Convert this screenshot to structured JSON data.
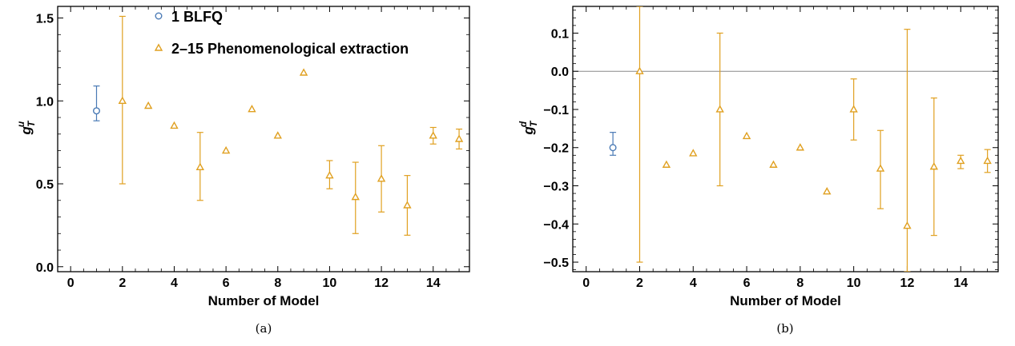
{
  "colors": {
    "blfq": "#4a7ab5",
    "phenomenological": "#e0a020",
    "frame": "#000000",
    "zero_line": "#888888"
  },
  "chart_data": [
    {
      "type": "scatter",
      "panel_caption": "(a)",
      "xlabel": "Number of Model",
      "ylabel_main": "g",
      "ylabel_sub": "T",
      "ylabel_sup": "u",
      "xlim": [
        -0.5,
        15.4
      ],
      "ylim": [
        -0.03,
        1.57
      ],
      "xticks": [
        0,
        2,
        4,
        6,
        8,
        10,
        12,
        14
      ],
      "yticks": [
        0.0,
        0.5,
        1.0,
        1.5
      ],
      "ytick_labels": [
        "0.0",
        "0.5",
        "1.0",
        "1.5"
      ],
      "zero_line": false,
      "legend": {
        "position": "top-left",
        "entries": [
          "1 BLFQ",
          "2–15 Phenomenological extraction"
        ]
      },
      "series": [
        {
          "name": "1 BLFQ",
          "marker": "circle",
          "color_key": "blfq",
          "points": [
            {
              "x": 1,
              "y": 0.94,
              "lo": 0.88,
              "hi": 1.09
            }
          ]
        },
        {
          "name": "2–15 Phenomenological extraction",
          "marker": "triangle",
          "color_key": "phenomenological",
          "points": [
            {
              "x": 2,
              "y": 1.0,
              "lo": 0.5,
              "hi": 1.51
            },
            {
              "x": 3,
              "y": 0.97
            },
            {
              "x": 4,
              "y": 0.85
            },
            {
              "x": 5,
              "y": 0.6,
              "lo": 0.4,
              "hi": 0.81
            },
            {
              "x": 6,
              "y": 0.7
            },
            {
              "x": 7,
              "y": 0.95
            },
            {
              "x": 8,
              "y": 0.79
            },
            {
              "x": 9,
              "y": 1.17
            },
            {
              "x": 10,
              "y": 0.55,
              "lo": 0.47,
              "hi": 0.64
            },
            {
              "x": 11,
              "y": 0.42,
              "lo": 0.2,
              "hi": 0.63
            },
            {
              "x": 12,
              "y": 0.53,
              "lo": 0.33,
              "hi": 0.73
            },
            {
              "x": 13,
              "y": 0.37,
              "lo": 0.19,
              "hi": 0.55
            },
            {
              "x": 14,
              "y": 0.79,
              "lo": 0.74,
              "hi": 0.84
            },
            {
              "x": 15,
              "y": 0.77,
              "lo": 0.71,
              "hi": 0.83
            }
          ]
        }
      ]
    },
    {
      "type": "scatter",
      "panel_caption": "(b)",
      "xlabel": "Number of Model",
      "ylabel_main": "g",
      "ylabel_sub": "T",
      "ylabel_sup": "d",
      "xlim": [
        -0.5,
        15.4
      ],
      "ylim": [
        -0.525,
        0.17
      ],
      "xticks": [
        0,
        2,
        4,
        6,
        8,
        10,
        12,
        14
      ],
      "yticks": [
        0.1,
        0.0,
        -0.1,
        -0.2,
        -0.3,
        -0.4,
        -0.5
      ],
      "ytick_labels": [
        "0.1",
        "0.0",
        "−0.1",
        "−0.2",
        "−0.3",
        "−0.4",
        "−0.5"
      ],
      "zero_line": true,
      "legend": null,
      "series": [
        {
          "name": "1 BLFQ",
          "marker": "circle",
          "color_key": "blfq",
          "points": [
            {
              "x": 1,
              "y": -0.2,
              "lo": -0.22,
              "hi": -0.16
            }
          ]
        },
        {
          "name": "2–15 Phenomenological extraction",
          "marker": "triangle",
          "color_key": "phenomenological",
          "points": [
            {
              "x": 2,
              "y": 0.0,
              "lo": -0.5,
              "hi": 0.17
            },
            {
              "x": 3,
              "y": -0.245
            },
            {
              "x": 4,
              "y": -0.215
            },
            {
              "x": 5,
              "y": -0.1,
              "lo": -0.3,
              "hi": 0.1
            },
            {
              "x": 6,
              "y": -0.17
            },
            {
              "x": 7,
              "y": -0.245
            },
            {
              "x": 8,
              "y": -0.2
            },
            {
              "x": 9,
              "y": -0.315
            },
            {
              "x": 10,
              "y": -0.1,
              "lo": -0.18,
              "hi": -0.02
            },
            {
              "x": 11,
              "y": -0.255,
              "lo": -0.36,
              "hi": -0.155
            },
            {
              "x": 12,
              "y": -0.405,
              "lo": -0.525,
              "hi": 0.11
            },
            {
              "x": 13,
              "y": -0.25,
              "lo": -0.43,
              "hi": -0.07
            },
            {
              "x": 14,
              "y": -0.235,
              "lo": -0.255,
              "hi": -0.22
            },
            {
              "x": 15,
              "y": -0.235,
              "lo": -0.265,
              "hi": -0.205
            }
          ]
        }
      ]
    }
  ]
}
